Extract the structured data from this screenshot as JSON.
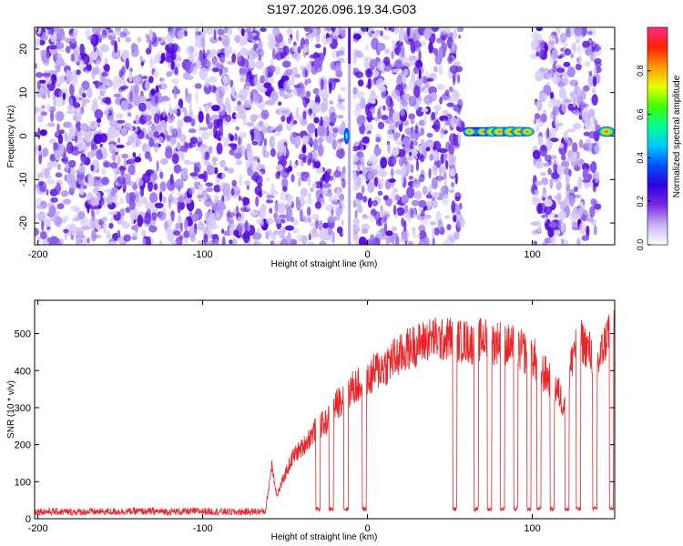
{
  "title": "S197.2026.096.19.34.G03",
  "colors": {
    "axis": "#000000",
    "snr_line": "#e8262a",
    "low_amp": "#b9a6f2",
    "mid_amp": "#5a0fe0",
    "background": "#ffffff"
  },
  "chart_data": [
    {
      "type": "heatmap",
      "title": "S197.2026.096.19.34.G03",
      "xlabel": "Height of straight line (km)",
      "ylabel": "Frequency (Hz)",
      "xlim": [
        -202,
        150
      ],
      "ylim": [
        -25,
        25
      ],
      "xticks": [
        -200,
        -100,
        0,
        100
      ],
      "xtick_labels": [
        "-200",
        "-100",
        "0",
        "100"
      ],
      "yticks": [
        -20,
        -10,
        0,
        10,
        20
      ],
      "ytick_labels": [
        "-20",
        "-10",
        "0",
        "10",
        "20"
      ],
      "colorbar": {
        "label": "Normalized spectral amplitude",
        "range": [
          0,
          1
        ],
        "ticks": [
          0.0,
          0.2,
          0.4,
          0.6,
          0.8
        ],
        "tick_labels": [
          "0.0",
          "0.2",
          "0.4",
          "0.6",
          "0.8"
        ],
        "colormap": [
          "#ffffff",
          "#c8b4f5",
          "#7a2ae6",
          "#3000e0",
          "#0050ff",
          "#00c8ff",
          "#00ff90",
          "#40ff00",
          "#e8ff00",
          "#ff9a00",
          "#ff2000",
          "#ff2a8a"
        ]
      },
      "noise_regions_km": [
        [
          -202,
          -14
        ],
        [
          -8,
          57
        ],
        [
          101,
          140
        ]
      ],
      "blank_regions_km": [
        [
          58,
          100
        ]
      ],
      "strong_vertical_feature_km": -11,
      "signal_band": {
        "frequency_hz": 1,
        "peaks": [
          {
            "x_km": 62,
            "amplitude": 0.5
          },
          {
            "x_km": 70,
            "amplitude": 0.55
          },
          {
            "x_km": 76,
            "amplitude": 0.85
          },
          {
            "x_km": 80,
            "amplitude": 0.7
          },
          {
            "x_km": 87,
            "amplitude": 0.9
          },
          {
            "x_km": 92,
            "amplitude": 0.75
          },
          {
            "x_km": 97,
            "amplitude": 0.6
          },
          {
            "x_km": 145,
            "amplitude": 0.9
          }
        ]
      }
    },
    {
      "type": "line",
      "xlabel": "Height of straight line (km)",
      "ylabel": "SNR (10 * v/v)",
      "xlim": [
        -202,
        150
      ],
      "ylim": [
        0,
        590
      ],
      "xticks": [
        -200,
        -100,
        0,
        100
      ],
      "xtick_labels": [
        "-200",
        "-100",
        "0",
        "100"
      ],
      "yticks": [
        0,
        100,
        200,
        300,
        400,
        500
      ],
      "ytick_labels": [
        "0",
        "100",
        "200",
        "300",
        "400",
        "500"
      ],
      "series": [
        {
          "name": "SNR",
          "x": [
            -202,
            -180,
            -160,
            -140,
            -120,
            -100,
            -80,
            -62,
            -60,
            -58,
            -55,
            -50,
            -45,
            -40,
            -35,
            -30,
            -25,
            -20,
            -15,
            -10,
            -5,
            0,
            5,
            10,
            15,
            20,
            25,
            30,
            35,
            40,
            45,
            50,
            55,
            60,
            65,
            70,
            75,
            80,
            85,
            90,
            95,
            100,
            105,
            110,
            115,
            120,
            125,
            130,
            135,
            140,
            145,
            148
          ],
          "values": [
            20,
            18,
            19,
            20,
            19,
            20,
            18,
            20,
            80,
            150,
            60,
            120,
            170,
            190,
            220,
            250,
            260,
            300,
            330,
            350,
            360,
            370,
            400,
            410,
            430,
            440,
            460,
            470,
            480,
            490,
            480,
            490,
            480,
            480,
            470,
            490,
            470,
            480,
            470,
            460,
            450,
            440,
            400,
            380,
            350,
            300,
            460,
            480,
            450,
            420,
            490,
            540
          ],
          "dropouts_km": [
            -30,
            -22,
            -13,
            -2,
            53,
            66,
            74,
            82,
            90,
            98,
            104,
            112,
            121,
            128,
            138,
            148
          ],
          "dropout_level": 20
        }
      ]
    }
  ]
}
